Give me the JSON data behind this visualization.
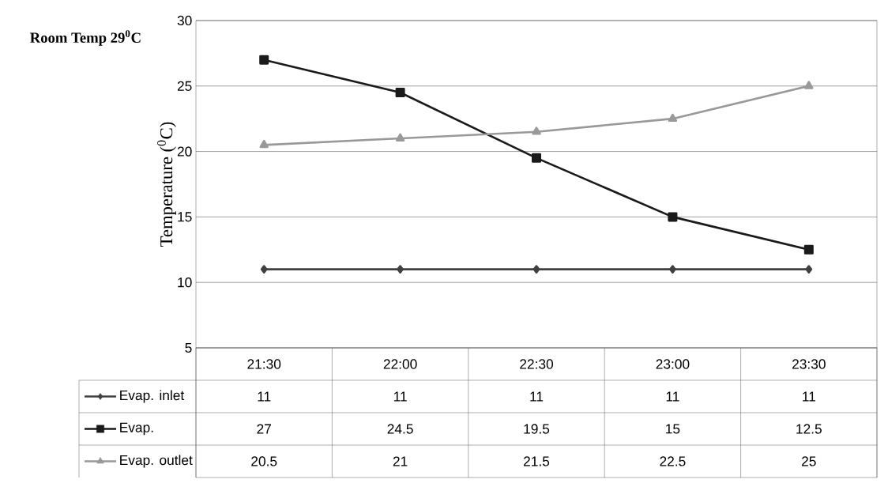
{
  "chart_data": {
    "type": "line",
    "annotations": [
      "Room Temp 29$^{0}$C"
    ],
    "ylabel": "Temperature ($^{0}$C)",
    "categories": [
      "21:30",
      "22:00",
      "22:30",
      "23:00",
      "23:30"
    ],
    "series": [
      {
        "name": "Evap. inlet",
        "color": "#404040",
        "marker": "diamond",
        "values": [
          11,
          11,
          11,
          11,
          11
        ]
      },
      {
        "name": "Evap.",
        "color": "#1a1a1a",
        "marker": "square",
        "values": [
          27,
          24.5,
          19.5,
          15,
          12.5
        ]
      },
      {
        "name": "Evap. outlet",
        "color": "#999999",
        "marker": "triangle",
        "values": [
          20.5,
          21,
          21.5,
          22.5,
          25
        ]
      }
    ],
    "ylim": [
      5,
      30
    ],
    "yticks": [
      5,
      10,
      15,
      20,
      25,
      30
    ],
    "grid": "y",
    "legend": "bottom left",
    "data_labels": true
  }
}
